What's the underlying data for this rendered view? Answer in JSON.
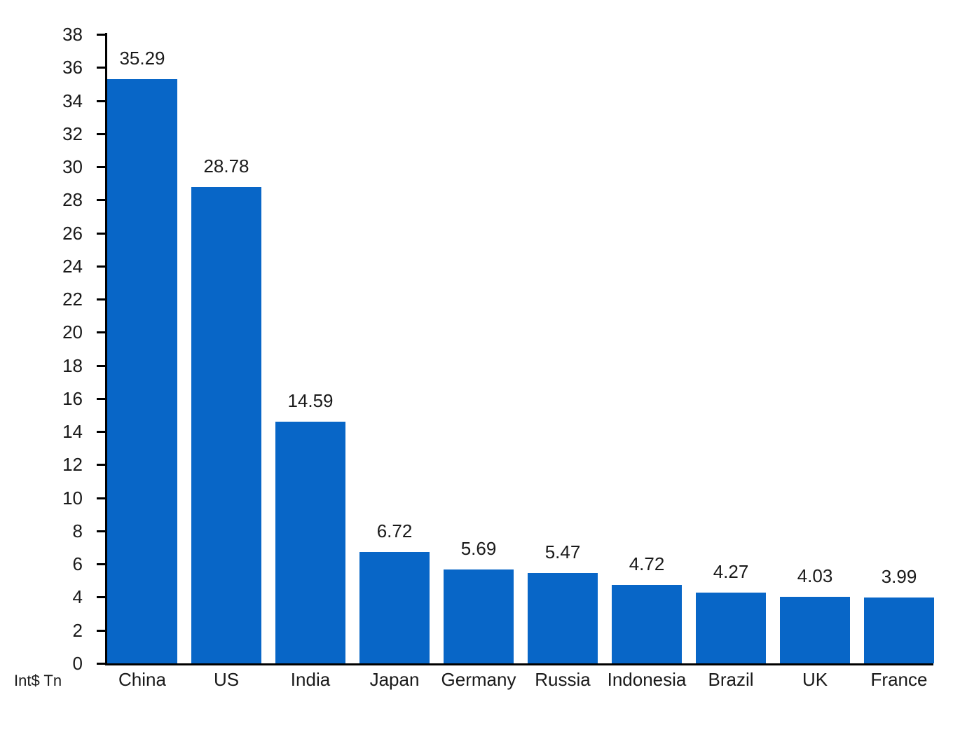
{
  "chart_data": {
    "type": "bar",
    "title": "",
    "xlabel": "",
    "ylabel": "Int$ Tn",
    "categories": [
      "China",
      "US",
      "India",
      "Japan",
      "Germany",
      "Russia",
      "Indonesia",
      "Brazil",
      "UK",
      "France"
    ],
    "values": [
      35.29,
      28.78,
      14.59,
      6.72,
      5.69,
      5.47,
      4.72,
      4.27,
      4.03,
      3.99
    ],
    "value_labels": [
      "35.29",
      "28.78",
      "14.59",
      "6.72",
      "5.69",
      "5.47",
      "4.72",
      "4.27",
      "4.03",
      "3.99"
    ],
    "ylim": [
      0,
      38
    ],
    "ytick_step": 2,
    "ytick_labels": [
      "0",
      "2",
      "4",
      "6",
      "8",
      "10",
      "12",
      "14",
      "16",
      "18",
      "20",
      "22",
      "24",
      "26",
      "28",
      "30",
      "32",
      "34",
      "36",
      "38"
    ],
    "grid": false,
    "legend": "none",
    "bar_color": "#0866c7",
    "axis_color": "#000000",
    "text_color": "#1a1a1a"
  }
}
